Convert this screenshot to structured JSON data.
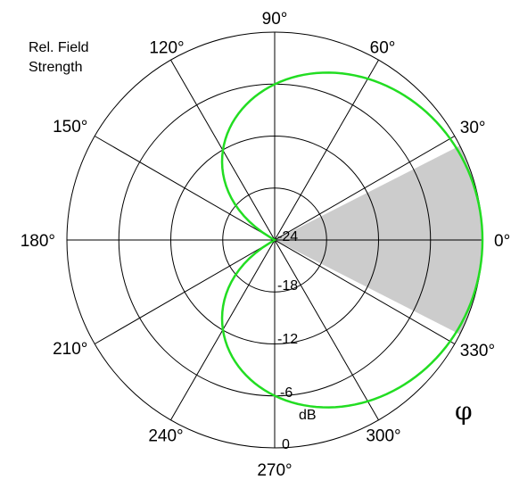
{
  "chart_data": {
    "type": "polar",
    "title_lines": [
      "Rel. Field",
      "Strength"
    ],
    "angle_labels": [
      "0°",
      "30°",
      "60°",
      "90°",
      "120°",
      "150°",
      "180°",
      "210°",
      "240°",
      "270°",
      "300°",
      "330°"
    ],
    "angle_values_deg": [
      0,
      30,
      60,
      90,
      120,
      150,
      180,
      210,
      240,
      270,
      300,
      330
    ],
    "ring_labels": [
      "-24",
      "-18",
      "-12",
      "-6",
      "0"
    ],
    "ring_values_db": [
      -24,
      -18,
      -12,
      -6,
      0
    ],
    "unit_label": "dB",
    "phi_label": "φ",
    "shaded_sector_deg": [
      -27,
      27
    ],
    "pattern": {
      "name": "",
      "color": "#22dd22",
      "shape": "cardioid",
      "points": [
        {
          "angle_deg": 0,
          "db": 0
        },
        {
          "angle_deg": 30,
          "db": -0.5
        },
        {
          "angle_deg": 60,
          "db": -2.5
        },
        {
          "angle_deg": 90,
          "db": -6
        },
        {
          "angle_deg": 120,
          "db": -12
        },
        {
          "angle_deg": 150,
          "db": -20
        },
        {
          "angle_deg": 180,
          "db": -24
        }
      ]
    },
    "colors": {
      "grid": "#000000",
      "sector": "#cccccc",
      "pattern": "#22dd22"
    }
  }
}
